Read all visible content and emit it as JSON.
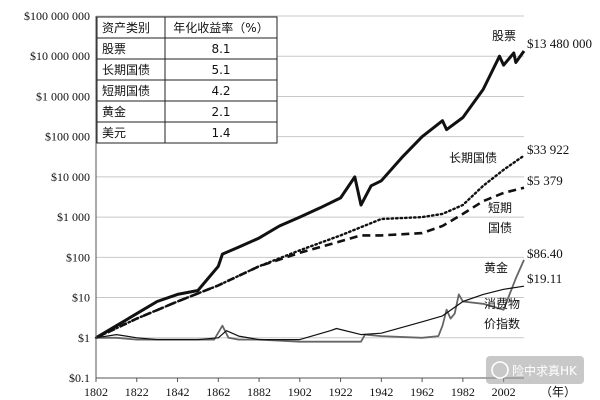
{
  "chart_data": {
    "type": "line",
    "y_scale": "log",
    "ylim": [
      0.1,
      100000000
    ],
    "xlim": [
      1802,
      2012
    ],
    "x_ticks": [
      "1802",
      "1822",
      "1842",
      "1862",
      "1882",
      "1902",
      "1922",
      "1942",
      "1962",
      "1982",
      "2002"
    ],
    "x_unit": "（年）",
    "y_ticks": [
      "$100 000 000",
      "$10 000 000",
      "$1 000 000",
      "$100 000",
      "$10 000",
      "$1 000",
      "$100",
      "$10",
      "$1",
      "$0.1"
    ],
    "grid": "horizontal",
    "table": {
      "headers": [
        "资产类别",
        "年化收益率（%）"
      ],
      "rows": [
        [
          "股票",
          "8.1"
        ],
        [
          "长期国债",
          "5.1"
        ],
        [
          "短期国债",
          "4.2"
        ],
        [
          "黄金",
          "2.1"
        ],
        [
          "美元",
          "1.4"
        ]
      ]
    },
    "series": [
      {
        "name": "股票",
        "end_label": "$13 480 000",
        "style": "solid-thick",
        "x": [
          1802,
          1812,
          1822,
          1832,
          1842,
          1852,
          1857,
          1862,
          1864,
          1872,
          1882,
          1892,
          1902,
          1912,
          1922,
          1929,
          1932,
          1937,
          1942,
          1952,
          1962,
          1972,
          1974,
          1982,
          1992,
          2000,
          2002,
          2007,
          2008,
          2012
        ],
        "y": [
          1,
          2,
          4,
          8,
          12,
          15,
          30,
          60,
          120,
          180,
          300,
          600,
          1000,
          1700,
          3000,
          10000,
          2000,
          6000,
          8000,
          30000,
          100000,
          250000,
          150000,
          300000,
          1500000,
          10000000,
          6000000,
          12000000,
          7000000,
          13480000
        ]
      },
      {
        "name": "长期国债",
        "end_label": "$33 922",
        "style": "dotted",
        "x": [
          1802,
          1822,
          1842,
          1862,
          1882,
          1902,
          1922,
          1942,
          1962,
          1972,
          1982,
          1992,
          2002,
          2012
        ],
        "y": [
          1,
          3,
          8,
          20,
          60,
          150,
          350,
          900,
          1000,
          1200,
          2000,
          6000,
          15000,
          33922
        ]
      },
      {
        "name": "短期国债",
        "end_label": "$5 379",
        "style": "dashed",
        "x": [
          1802,
          1822,
          1842,
          1862,
          1882,
          1902,
          1922,
          1932,
          1942,
          1962,
          1972,
          1982,
          1992,
          2002,
          2012
        ],
        "y": [
          1,
          3,
          8,
          20,
          60,
          130,
          250,
          350,
          350,
          400,
          600,
          1200,
          2500,
          4000,
          5379
        ]
      },
      {
        "name": "黄金",
        "end_label": "$86.40",
        "style": "solid-gray",
        "x": [
          1802,
          1812,
          1822,
          1832,
          1842,
          1852,
          1860,
          1864,
          1867,
          1872,
          1882,
          1902,
          1922,
          1932,
          1934,
          1942,
          1962,
          1970,
          1972,
          1974,
          1976,
          1978,
          1980,
          1982,
          1992,
          2002,
          2008,
          2012
        ],
        "y": [
          1,
          1,
          0.9,
          0.9,
          0.9,
          0.9,
          0.9,
          2,
          1,
          0.9,
          0.9,
          0.8,
          0.8,
          0.8,
          1.2,
          1.1,
          1,
          1.1,
          2,
          5,
          3,
          4,
          12,
          8,
          7,
          5,
          30,
          86.4
        ]
      },
      {
        "name": "消费物价指数",
        "end_label": "$19.11",
        "style": "solid-thin",
        "x": [
          1802,
          1812,
          1822,
          1832,
          1842,
          1852,
          1862,
          1866,
          1872,
          1882,
          1902,
          1917,
          1920,
          1932,
          1942,
          1962,
          1972,
          1982,
          1992,
          2002,
          2012
        ],
        "y": [
          1,
          1.2,
          1,
          0.9,
          0.9,
          0.9,
          1,
          1.5,
          1.1,
          0.9,
          0.9,
          1.5,
          1.7,
          1.2,
          1.3,
          2.5,
          3.5,
          8,
          12,
          16,
          19.11
        ]
      }
    ],
    "annotations": [
      {
        "text": "股票",
        "for": "股票"
      },
      {
        "text": "长期国债",
        "for": "长期国债"
      },
      {
        "text": "短期",
        "for": "短期国债"
      },
      {
        "text": "国债",
        "for": "短期国债"
      },
      {
        "text": "黄金",
        "for": "黄金"
      },
      {
        "text": "消费物",
        "for": "消费物价指数"
      },
      {
        "text": "价指数",
        "for": "消费物价指数"
      }
    ],
    "watermark": "险中求真HK"
  }
}
